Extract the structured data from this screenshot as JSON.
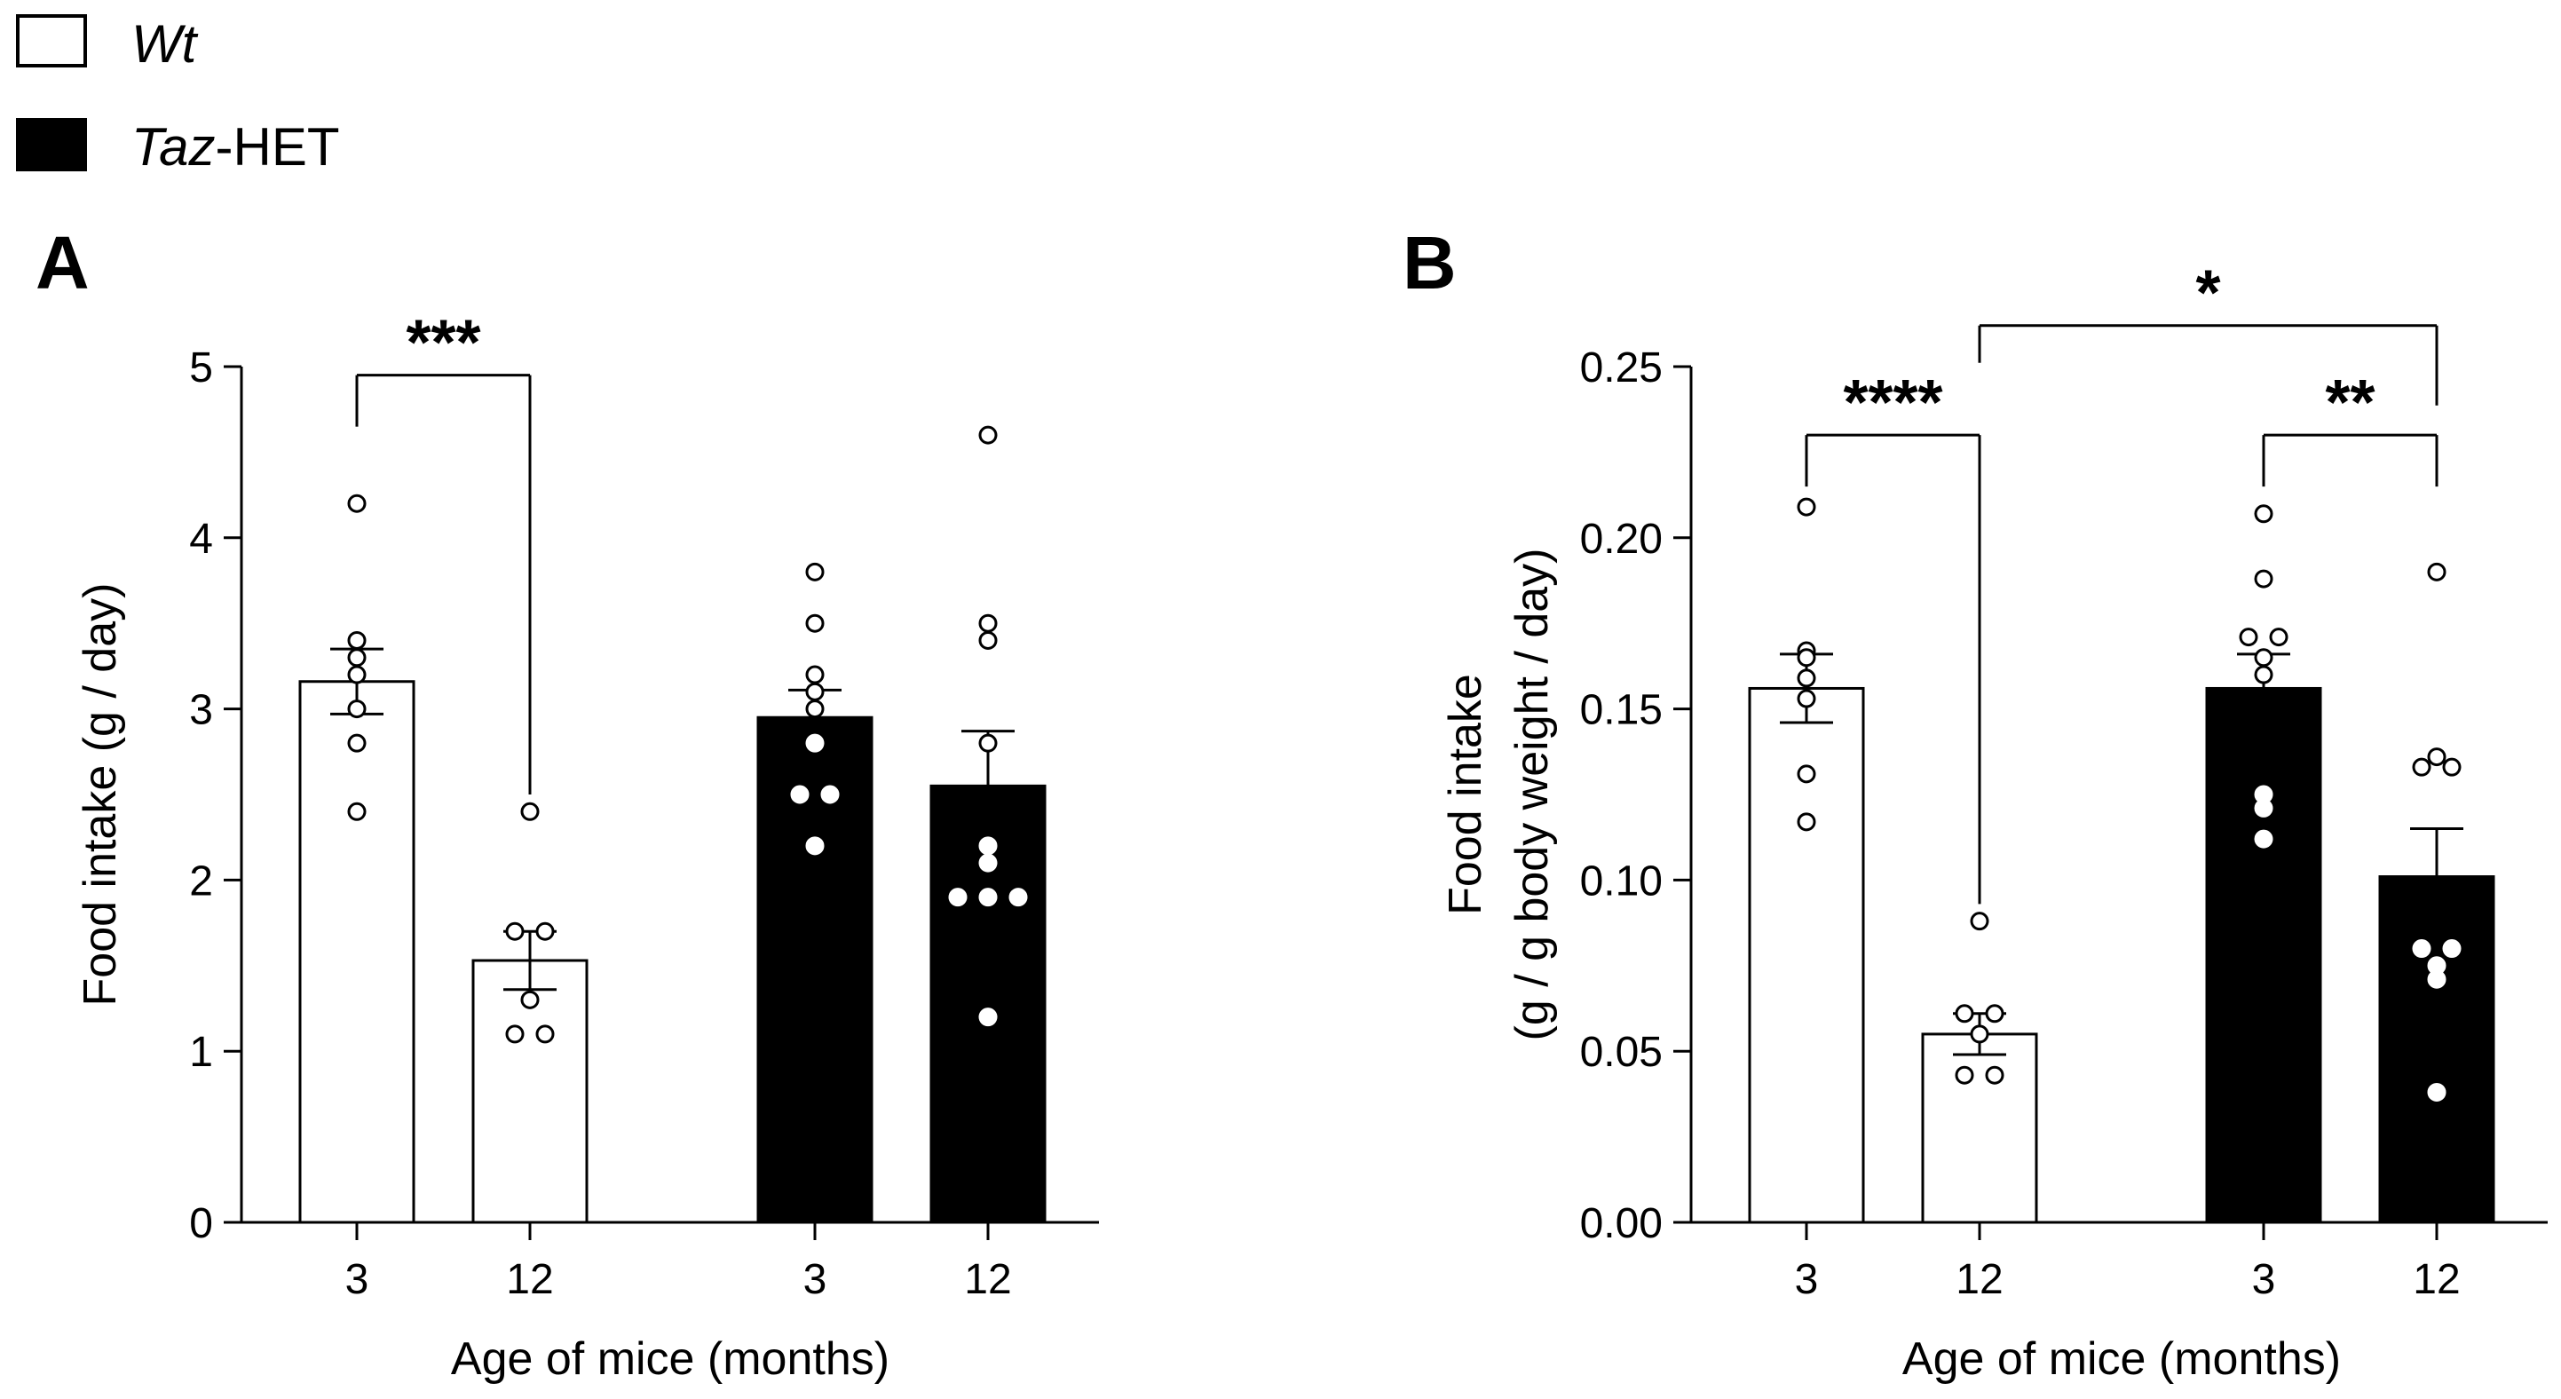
{
  "legend": [
    {
      "label": "Wt",
      "label_italic": "Wt",
      "label_rest": "",
      "fill": "#ffffff"
    },
    {
      "label": "Taz-HET",
      "label_italic": "Taz",
      "label_rest": "-HET",
      "fill": "#000000"
    }
  ],
  "colors": {
    "wt": "#ffffff",
    "het": "#000000",
    "stroke": "#000000"
  },
  "chart_data": [
    {
      "panel": "A",
      "type": "bar",
      "ylabel_lines": [
        "Food intake (g / day)"
      ],
      "xlabel": "Age of mice (months)",
      "ylim": [
        0,
        5
      ],
      "yticks": [
        0,
        1,
        2,
        3,
        4,
        5
      ],
      "ytick_labels": [
        "0",
        "1",
        "2",
        "3",
        "4",
        "5"
      ],
      "categories": [
        "3",
        "12",
        "3",
        "12"
      ],
      "groups": [
        "Wt",
        "Wt",
        "Taz-HET",
        "Taz-HET"
      ],
      "values": [
        3.16,
        1.53,
        2.95,
        2.55
      ],
      "sem": [
        0.19,
        0.17,
        0.16,
        0.32
      ],
      "points": [
        [
          4.2,
          3.4,
          3.3,
          3.2,
          3.0,
          2.8,
          2.4
        ],
        [
          2.4,
          1.7,
          1.7,
          1.3,
          1.1,
          1.1
        ],
        [
          3.8,
          3.5,
          3.2,
          3.1,
          3.0,
          2.8,
          2.5,
          2.5,
          2.2
        ],
        [
          4.6,
          3.5,
          3.4,
          2.8,
          2.2,
          2.1,
          1.9,
          1.9,
          1.9,
          1.2
        ]
      ],
      "brackets": [
        {
          "from": 0,
          "to": 1,
          "y": 4.95,
          "label": "***"
        }
      ]
    },
    {
      "panel": "B",
      "type": "bar",
      "ylabel_lines": [
        "Food intake",
        "(g / g body weight / day)"
      ],
      "xlabel": "Age of mice (months)",
      "ylim": [
        0,
        0.25
      ],
      "yticks": [
        0,
        0.05,
        0.1,
        0.15,
        0.2,
        0.25
      ],
      "ytick_labels": [
        "0.00",
        "0.05",
        "0.10",
        "0.15",
        "0.20",
        "0.25"
      ],
      "categories": [
        "3",
        "12",
        "3",
        "12"
      ],
      "groups": [
        "Wt",
        "Wt",
        "Taz-HET",
        "Taz-HET"
      ],
      "values": [
        0.156,
        0.055,
        0.156,
        0.101
      ],
      "sem": [
        0.01,
        0.006,
        0.01,
        0.014
      ],
      "points": [
        [
          0.209,
          0.167,
          0.165,
          0.159,
          0.153,
          0.131,
          0.117
        ],
        [
          0.088,
          0.061,
          0.061,
          0.055,
          0.043,
          0.043
        ],
        [
          0.207,
          0.188,
          0.171,
          0.171,
          0.165,
          0.16,
          0.125,
          0.121,
          0.112
        ],
        [
          0.19,
          0.136,
          0.133,
          0.133,
          0.08,
          0.08,
          0.075,
          0.071,
          0.038
        ]
      ],
      "brackets": [
        {
          "from": 0,
          "to": 1,
          "y": 0.23,
          "label": "****"
        },
        {
          "from": 2,
          "to": 3,
          "y": 0.23,
          "label": "**"
        },
        {
          "from": 1,
          "to": 3,
          "y": 0.262,
          "label": "*"
        }
      ]
    }
  ]
}
